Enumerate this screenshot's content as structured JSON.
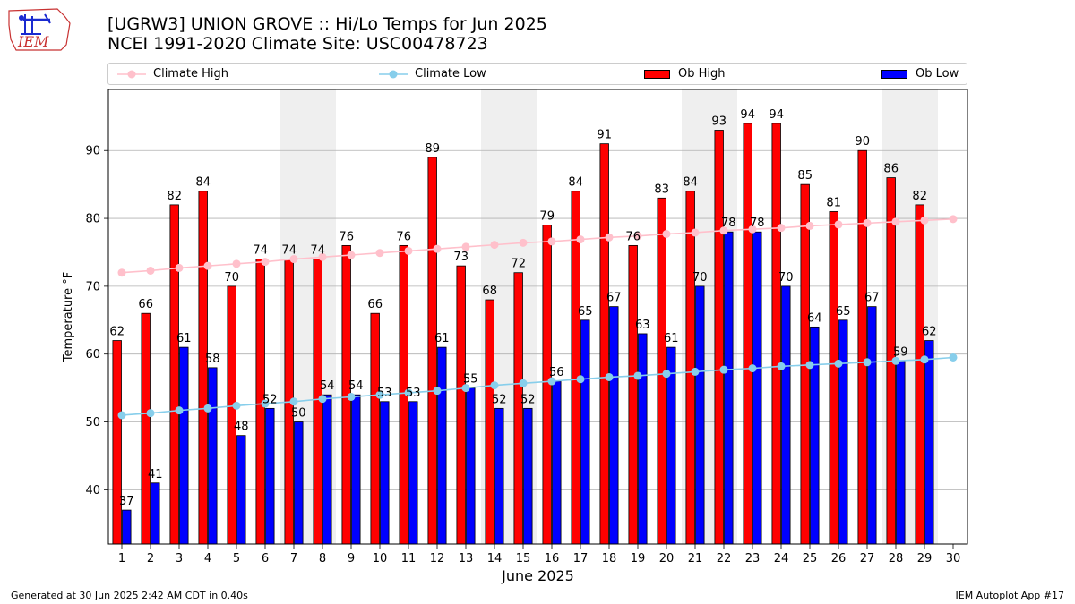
{
  "header": {
    "title": "[UGRW3] UNION GROVE :: Hi/Lo Temps for Jun 2025",
    "subtitle": "NCEI 1991-2020 Climate Site: USC00478723",
    "logo_text": "IEM"
  },
  "legend": {
    "items": [
      {
        "label": "Climate High",
        "kind": "line",
        "color": "#ffc0cb"
      },
      {
        "label": "Climate Low",
        "kind": "line",
        "color": "#87ceeb"
      },
      {
        "label": "Ob High",
        "kind": "bar",
        "color": "#ff0000"
      },
      {
        "label": "Ob Low",
        "kind": "bar",
        "color": "#0000ff"
      }
    ]
  },
  "footer": {
    "left": "Generated at 30 Jun 2025 2:42 AM CDT in 0.40s",
    "right": "IEM Autoplot App #17"
  },
  "chart_data": {
    "type": "bar",
    "title": "[UGRW3] UNION GROVE :: Hi/Lo Temps for Jun 2025",
    "subtitle": "NCEI 1991-2020 Climate Site: USC00478723",
    "xlabel": "June 2025",
    "ylabel": "Temperature °F",
    "ylim": [
      32,
      99
    ],
    "yticks": [
      40,
      50,
      60,
      70,
      80,
      90
    ],
    "grid": "y",
    "legend_position": "top",
    "categories": [
      "1",
      "2",
      "3",
      "4",
      "5",
      "6",
      "7",
      "8",
      "9",
      "10",
      "11",
      "12",
      "13",
      "14",
      "15",
      "16",
      "17",
      "18",
      "19",
      "20",
      "21",
      "22",
      "23",
      "24",
      "25",
      "26",
      "27",
      "28",
      "29",
      "30"
    ],
    "weekend_shading": [
      [
        "7",
        "8"
      ],
      [
        "14",
        "15"
      ],
      [
        "21",
        "22"
      ],
      [
        "28",
        "29"
      ]
    ],
    "series": [
      {
        "name": "Ob High",
        "type": "bar",
        "color": "#ff0000",
        "values": [
          62,
          66,
          82,
          84,
          70,
          74,
          74,
          74,
          76,
          66,
          76,
          89,
          73,
          68,
          72,
          79,
          84,
          91,
          76,
          83,
          84,
          93,
          94,
          94,
          85,
          81,
          90,
          86,
          82,
          null
        ]
      },
      {
        "name": "Ob Low",
        "type": "bar",
        "color": "#0000ff",
        "values": [
          37,
          41,
          61,
          58,
          48,
          52,
          50,
          54,
          54,
          53,
          53,
          61,
          55,
          52,
          52,
          56,
          65,
          67,
          63,
          61,
          70,
          78,
          78,
          70,
          64,
          65,
          67,
          59,
          62,
          null
        ]
      },
      {
        "name": "Climate High",
        "type": "line",
        "color": "#ffc0cb",
        "values": [
          72.0,
          72.3,
          72.7,
          73.0,
          73.3,
          73.6,
          74.0,
          74.3,
          74.6,
          74.9,
          75.2,
          75.5,
          75.8,
          76.1,
          76.4,
          76.6,
          76.9,
          77.2,
          77.4,
          77.7,
          77.9,
          78.2,
          78.4,
          78.6,
          78.9,
          79.1,
          79.3,
          79.5,
          79.7,
          79.9
        ]
      },
      {
        "name": "Climate Low",
        "type": "line",
        "color": "#87ceeb",
        "values": [
          51.0,
          51.3,
          51.7,
          52.0,
          52.4,
          52.7,
          53.0,
          53.4,
          53.7,
          54.0,
          54.3,
          54.6,
          55.0,
          55.4,
          55.7,
          56.0,
          56.3,
          56.6,
          56.8,
          57.1,
          57.4,
          57.7,
          57.9,
          58.2,
          58.4,
          58.6,
          58.8,
          59.0,
          59.2,
          59.5
        ]
      }
    ]
  }
}
